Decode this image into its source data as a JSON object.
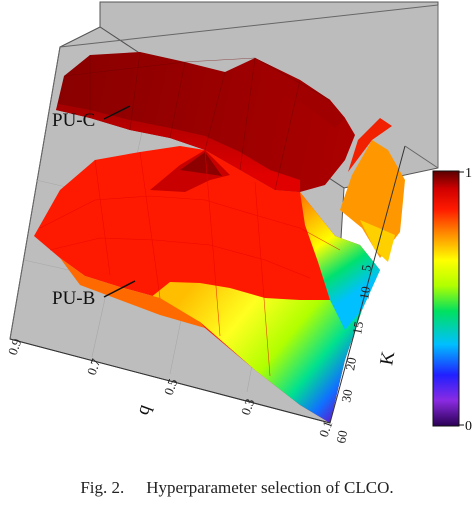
{
  "chart_data": {
    "type": "surface3d",
    "x_axis": {
      "label": "q",
      "ticks": [
        "0.9",
        "0.7",
        "0.5",
        "0.3",
        "0.1"
      ]
    },
    "y_axis": {
      "label": "K",
      "ticks": [
        "5",
        "10",
        "15",
        "20",
        "30",
        "60"
      ]
    },
    "surfaces": [
      {
        "label": "PU-C",
        "approx_range": [
          0.92,
          1.0
        ]
      },
      {
        "label": "PU-B",
        "approx_range": [
          0.15,
          0.96
        ]
      }
    ],
    "colorbar": {
      "min": 0,
      "max": 1,
      "ticks": [
        "1",
        "0"
      ],
      "colormap": "rainbow-reversed (violet 0 to dark red 1)"
    }
  },
  "caption": {
    "fig": "Fig. 2.",
    "text": "Hyperparameter selection of CLCO."
  }
}
